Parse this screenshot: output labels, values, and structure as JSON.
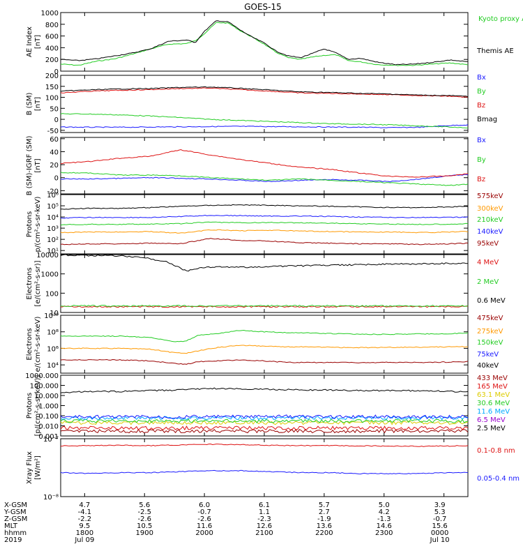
{
  "title": "GOES-15",
  "colors": {
    "black": "#000000",
    "green": "#22cc22",
    "blue": "#1a1aff",
    "red": "#dd1111",
    "orange": "#ff9900",
    "dkred": "#990000",
    "cyan": "#00aaff",
    "purple": "#9900cc",
    "yellow": "#ddcc00"
  },
  "time_axis": {
    "row_labels": [
      "X-GSM",
      "Y-GSM",
      "Z-GSM",
      "MLT",
      "hhmm",
      "2019"
    ],
    "columns": [
      [
        "4.7",
        "-4.1",
        "-2.2",
        "9.5",
        "1800",
        "Jul 09"
      ],
      [
        "5.6",
        "-2.5",
        "-2.6",
        "10.5",
        "1900",
        ""
      ],
      [
        "6.0",
        "-0.7",
        "-2.6",
        "11.6",
        "2000",
        ""
      ],
      [
        "6.1",
        "1.1",
        "-2.3",
        "12.6",
        "2100",
        ""
      ],
      [
        "5.7",
        "2.7",
        "-1.9",
        "13.6",
        "2200",
        ""
      ],
      [
        "5.0",
        "4.2",
        "-1.3",
        "14.6",
        "2300",
        ""
      ],
      [
        "3.9",
        "5.3",
        "-0.7",
        "15.6",
        "0000",
        "Jul 10"
      ]
    ]
  },
  "chart_data": [
    {
      "type": "line",
      "ylabel": [
        "AE Index",
        "[nT]"
      ],
      "ylim": [
        0,
        1000
      ],
      "yticks": [
        0,
        200,
        400,
        600,
        800,
        1000
      ],
      "ticklabels": [
        "0",
        "200",
        "400",
        "600",
        "800",
        "1000"
      ],
      "x_hours": [
        0,
        0.3,
        0.6,
        0.9,
        1.2,
        1.5,
        1.8,
        2.1,
        2.25,
        2.4,
        2.6,
        2.8,
        3.0,
        3.2,
        3.4,
        3.6,
        3.8,
        4.0,
        4.2,
        4.4,
        4.6,
        4.8,
        5.0,
        5.3,
        5.6,
        5.9,
        6.2,
        6.5,
        6.8
      ],
      "series": [
        {
          "name": "Kyoto proxy AE",
          "color": "green",
          "values": [
            120,
            100,
            170,
            210,
            290,
            380,
            460,
            470,
            520,
            640,
            830,
            820,
            690,
            580,
            460,
            320,
            230,
            200,
            240,
            270,
            280,
            180,
            160,
            110,
            100,
            100,
            120,
            140,
            110
          ]
        },
        {
          "name": "Themis AE",
          "color": "black",
          "values": [
            200,
            180,
            210,
            260,
            310,
            380,
            510,
            530,
            490,
            680,
            860,
            840,
            700,
            580,
            480,
            340,
            260,
            230,
            300,
            380,
            310,
            200,
            220,
            150,
            110,
            120,
            150,
            190,
            160
          ]
        }
      ]
    },
    {
      "type": "line",
      "ylabel": [
        "B (SM)",
        "[nT]"
      ],
      "ylim": [
        -60,
        200
      ],
      "yticks": [
        -50,
        0,
        50,
        100,
        150,
        200
      ],
      "ticklabels": [
        "-50",
        "0",
        "50",
        "100",
        "150",
        "200"
      ],
      "x_hours": [
        0,
        0.5,
        1.0,
        1.5,
        2.0,
        2.5,
        3.0,
        3.5,
        4.0,
        4.5,
        5.0,
        5.5,
        6.0,
        6.5,
        6.8
      ],
      "series": [
        {
          "name": "Bx",
          "color": "blue",
          "values": [
            -35,
            -36,
            -36,
            -35,
            -34,
            -33,
            -32,
            -33,
            -34,
            -35,
            -36,
            -38,
            -36,
            -28,
            -25
          ]
        },
        {
          "name": "By",
          "color": "green",
          "values": [
            25,
            24,
            20,
            15,
            8,
            0,
            -5,
            -10,
            -15,
            -20,
            -22,
            -25,
            -30,
            -35,
            -38
          ]
        },
        {
          "name": "Bz",
          "color": "red",
          "values": [
            120,
            128,
            132,
            135,
            140,
            142,
            135,
            128,
            120,
            118,
            115,
            112,
            108,
            105,
            100
          ]
        },
        {
          "name": "Bmag",
          "color": "black",
          "values": [
            128,
            134,
            138,
            140,
            145,
            147,
            141,
            133,
            125,
            122,
            118,
            115,
            110,
            108,
            104
          ]
        }
      ]
    },
    {
      "type": "line",
      "ylabel": [
        "B (SM)-IGRF (SM)",
        "[nT]"
      ],
      "ylim": [
        -25,
        62
      ],
      "yticks": [
        -20,
        0,
        20,
        40,
        60
      ],
      "ticklabels": [
        "-20",
        "0",
        "20",
        "40",
        "60"
      ],
      "x_hours": [
        0,
        0.5,
        1.0,
        1.5,
        2.0,
        2.5,
        3.0,
        3.5,
        4.0,
        4.5,
        5.0,
        5.5,
        6.0,
        6.5,
        6.8
      ],
      "series": [
        {
          "name": "Bx",
          "color": "blue",
          "values": [
            -2,
            -2,
            -1,
            0,
            -1,
            -2,
            -4,
            -6,
            -4,
            -3,
            -4,
            -6,
            -2,
            3,
            5
          ]
        },
        {
          "name": "By",
          "color": "green",
          "values": [
            8,
            7,
            4,
            4,
            3,
            0,
            -2,
            -4,
            -2,
            -4,
            -6,
            -8,
            -10,
            -12,
            -10
          ]
        },
        {
          "name": "Bz",
          "color": "red",
          "values": [
            22,
            25,
            30,
            33,
            43,
            35,
            28,
            22,
            16,
            13,
            7,
            2,
            1,
            3,
            6
          ]
        }
      ]
    },
    {
      "type": "line",
      "log": true,
      "ylabel": [
        "Protons",
        "p/(cm²-s-sr-keV)"
      ],
      "ylim": [
        5,
        1000000
      ],
      "yticks": [
        10,
        100,
        1000,
        10000,
        100000,
        1000000
      ],
      "ticklabels": [
        "10¹",
        "10²",
        "10³",
        "10⁴",
        "10⁵",
        "10⁶"
      ],
      "x_hours": [
        0,
        0.5,
        1.0,
        1.5,
        2.0,
        2.5,
        3.0,
        3.5,
        4.0,
        4.5,
        5.0,
        5.5,
        6.0,
        6.5,
        6.8
      ],
      "series": [
        {
          "name": "575keV",
          "color": "black",
          "values": [
            50000,
            60000,
            60000,
            70000,
            90000,
            110000,
            120000,
            110000,
            100000,
            90000,
            80000,
            70000,
            70000,
            80000,
            90000
          ]
        },
        {
          "name": "300keV",
          "color": "blue",
          "values": [
            8000,
            9000,
            9000,
            9000,
            11000,
            14000,
            13000,
            12000,
            12000,
            11000,
            10000,
            9000,
            9000,
            9000,
            10000
          ]
        },
        {
          "name": "210keV",
          "color": "green",
          "values": [
            2000,
            2200,
            2200,
            2300,
            2500,
            3500,
            3000,
            3200,
            3000,
            2800,
            2500,
            2300,
            2200,
            2300,
            2500
          ]
        },
        {
          "name": "140keV",
          "color": "orange",
          "values": [
            400,
            450,
            450,
            500,
            350,
            700,
            600,
            650,
            550,
            500,
            450,
            450,
            400,
            450,
            500
          ]
        },
        {
          "name": "95keV",
          "color": "dkred",
          "values": [
            35,
            40,
            40,
            45,
            40,
            120,
            80,
            70,
            50,
            45,
            40,
            40,
            35,
            40,
            45
          ]
        }
      ],
      "legend_colors": [
        "dkred",
        "orange",
        "green",
        "blue",
        "dkred"
      ]
    },
    {
      "type": "line",
      "log": true,
      "ylabel": [
        "Electrons",
        "[e/(cm²-s-sr)]"
      ],
      "ylim": [
        10,
        10000
      ],
      "yticks": [
        10,
        100,
        1000,
        10000
      ],
      "ticklabels": [
        "10",
        "100",
        "1000",
        "10000"
      ],
      "x_hours": [
        0,
        0.5,
        1.0,
        1.4,
        1.8,
        2.1,
        2.3,
        2.6,
        3.0,
        3.5,
        4.0,
        4.5,
        5.0,
        5.5,
        6.0,
        6.5,
        6.8
      ],
      "series": [
        {
          "name": "4 MeV",
          "color": "red",
          "values": [
            20,
            20,
            20,
            20,
            20,
            20,
            20,
            20,
            20,
            20,
            20,
            20,
            20,
            20,
            20,
            20,
            20
          ]
        },
        {
          "name": "2 MeV",
          "color": "green",
          "values": [
            22,
            22,
            22,
            22,
            22,
            22,
            22,
            22,
            22,
            22,
            22,
            22,
            22,
            22,
            22,
            22,
            22
          ]
        },
        {
          "name": "0.6 MeV",
          "color": "black",
          "values": [
            9500,
            9000,
            8500,
            7000,
            4000,
            1400,
            2000,
            2300,
            2200,
            2400,
            2600,
            2800,
            3000,
            3200,
            3300,
            3500,
            3600
          ]
        }
      ]
    },
    {
      "type": "line",
      "log": true,
      "ylabel": [
        "Electrons",
        "e/(cm²-s-sr-keV)"
      ],
      "ylim": [
        1000,
        10000000000
      ],
      "yticks": [
        10000,
        1000000,
        100000000,
        10000000000
      ],
      "ticklabels": [
        "10⁴",
        "10⁶",
        "10⁸",
        "10¹⁰"
      ],
      "x_hours": [
        0,
        0.5,
        1.0,
        1.5,
        1.9,
        2.1,
        2.3,
        2.6,
        3.0,
        3.4,
        3.8,
        4.2,
        4.6,
        5.0,
        5.5,
        6.0,
        6.5,
        6.8
      ],
      "series": [
        {
          "name": "475keV",
          "color": "dkred",
          "values": [
            40000,
            40000,
            40000,
            30000,
            15000,
            12000,
            25000,
            30000,
            40000,
            30000,
            20000,
            20000,
            20000,
            18000,
            20000,
            20000,
            22000,
            25000
          ]
        },
        {
          "name": "275keV",
          "color": "orange",
          "values": [
            1000000,
            1000000,
            1000000,
            800000,
            300000,
            250000,
            500000,
            1200000,
            2500000,
            1800000,
            1500000,
            1500000,
            1300000,
            1200000,
            1300000,
            1400000,
            1500000,
            1600000
          ]
        },
        {
          "name": "150keV",
          "color": "green",
          "values": [
            30000000,
            30000000,
            30000000,
            20000000,
            6000000,
            8000000,
            40000000,
            60000000,
            150000000,
            100000000,
            80000000,
            70000000,
            60000000,
            50000000,
            50000000,
            55000000,
            60000000,
            70000000
          ]
        },
        {
          "name": "75keV",
          "color": "blue",
          "values": []
        },
        {
          "name": "40keV",
          "color": "black",
          "values": []
        }
      ]
    },
    {
      "type": "line",
      "log": true,
      "ylabel": [
        "Protons",
        "[p/(cm²-s-sr-keV)]"
      ],
      "ylim": [
        0.001,
        1000
      ],
      "yticks": [
        0.001,
        0.01,
        0.1,
        1,
        10,
        100,
        1000
      ],
      "ticklabels": [
        "0.001",
        "0.010",
        "0.100",
        "1.000",
        "10.000",
        "100.000",
        "1000.000"
      ],
      "x_hours": [
        0,
        0.5,
        1.0,
        1.5,
        2.0,
        2.5,
        3.0,
        3.5,
        4.0,
        4.5,
        5.0,
        5.5,
        6.0,
        6.5,
        6.8
      ],
      "series": [
        {
          "name": "433 MeV",
          "color": "dkred",
          "values": [
            0.003,
            0.003,
            0.003,
            0.003,
            0.003,
            0.003,
            0.003,
            0.003,
            0.003,
            0.003,
            0.003,
            0.003,
            0.003,
            0.003,
            0.003
          ]
        },
        {
          "name": "165 MeV",
          "color": "red",
          "values": [
            0.006,
            0.006,
            0.006,
            0.006,
            0.006,
            0.006,
            0.006,
            0.006,
            0.006,
            0.006,
            0.006,
            0.006,
            0.006,
            0.006,
            0.006
          ]
        },
        {
          "name": "63.1 MeV",
          "color": "yellow",
          "values": [
            0.02,
            0.02,
            0.02,
            0.02,
            0.02,
            0.02,
            0.02,
            0.02,
            0.02,
            0.02,
            0.02,
            0.02,
            0.02,
            0.02,
            0.02
          ]
        },
        {
          "name": "30.6 MeV",
          "color": "green",
          "values": [
            0.03,
            0.03,
            0.03,
            0.03,
            0.03,
            0.03,
            0.03,
            0.03,
            0.03,
            0.03,
            0.03,
            0.03,
            0.03,
            0.03,
            0.03
          ]
        },
        {
          "name": "11.6 MeV",
          "color": "cyan",
          "values": [
            0.06,
            0.06,
            0.06,
            0.06,
            0.06,
            0.06,
            0.06,
            0.06,
            0.06,
            0.06,
            0.06,
            0.06,
            0.06,
            0.06,
            0.06
          ]
        },
        {
          "name": "6.5 MeV",
          "color": "blue",
          "values": [
            0.08,
            0.08,
            0.08,
            0.08,
            0.08,
            0.08,
            0.08,
            0.08,
            0.08,
            0.08,
            0.08,
            0.08,
            0.08,
            0.08,
            0.08
          ]
        },
        {
          "name": "2.5 MeV",
          "color": "black",
          "values": [
            20,
            25,
            25,
            30,
            35,
            50,
            45,
            40,
            35,
            35,
            30,
            30,
            30,
            25,
            25
          ]
        }
      ],
      "legend_colors": [
        "dkred",
        "red",
        "yellow",
        "green",
        "cyan",
        "purple",
        "black"
      ]
    },
    {
      "type": "line",
      "log": true,
      "ylabel": [
        "Xray Flux",
        "[W/m²]"
      ],
      "ylim": [
        1e-08,
        1e-07
      ],
      "yticks": [
        1e-08,
        1e-07
      ],
      "ticklabels": [
        "10⁻⁸",
        "10⁻⁷"
      ],
      "x_hours": [
        0,
        0.5,
        1.0,
        1.5,
        2.0,
        2.5,
        3.0,
        3.5,
        4.0,
        4.5,
        5.0,
        5.5,
        6.0,
        6.5,
        6.8
      ],
      "series": [
        {
          "name": "0.1-0.8 nm",
          "color": "red",
          "values": [
            7.5e-08,
            7.6e-08,
            7.7e-08,
            7.6e-08,
            7.8e-08,
            8e-08,
            7.9e-08,
            7.7e-08,
            7.6e-08,
            7.6e-08,
            7.5e-08,
            7.5e-08,
            7.4e-08,
            7.5e-08,
            7.6e-08
          ]
        },
        {
          "name": "0.05-0.4 nm",
          "color": "blue",
          "values": [
            2.6e-08,
            2.5e-08,
            2.6e-08,
            2.6e-08,
            2.7e-08,
            2.8e-08,
            2.8e-08,
            2.7e-08,
            2.6e-08,
            2.6e-08,
            2.5e-08,
            2.5e-08,
            2.5e-08,
            2.6e-08,
            2.6e-08
          ]
        }
      ]
    }
  ]
}
